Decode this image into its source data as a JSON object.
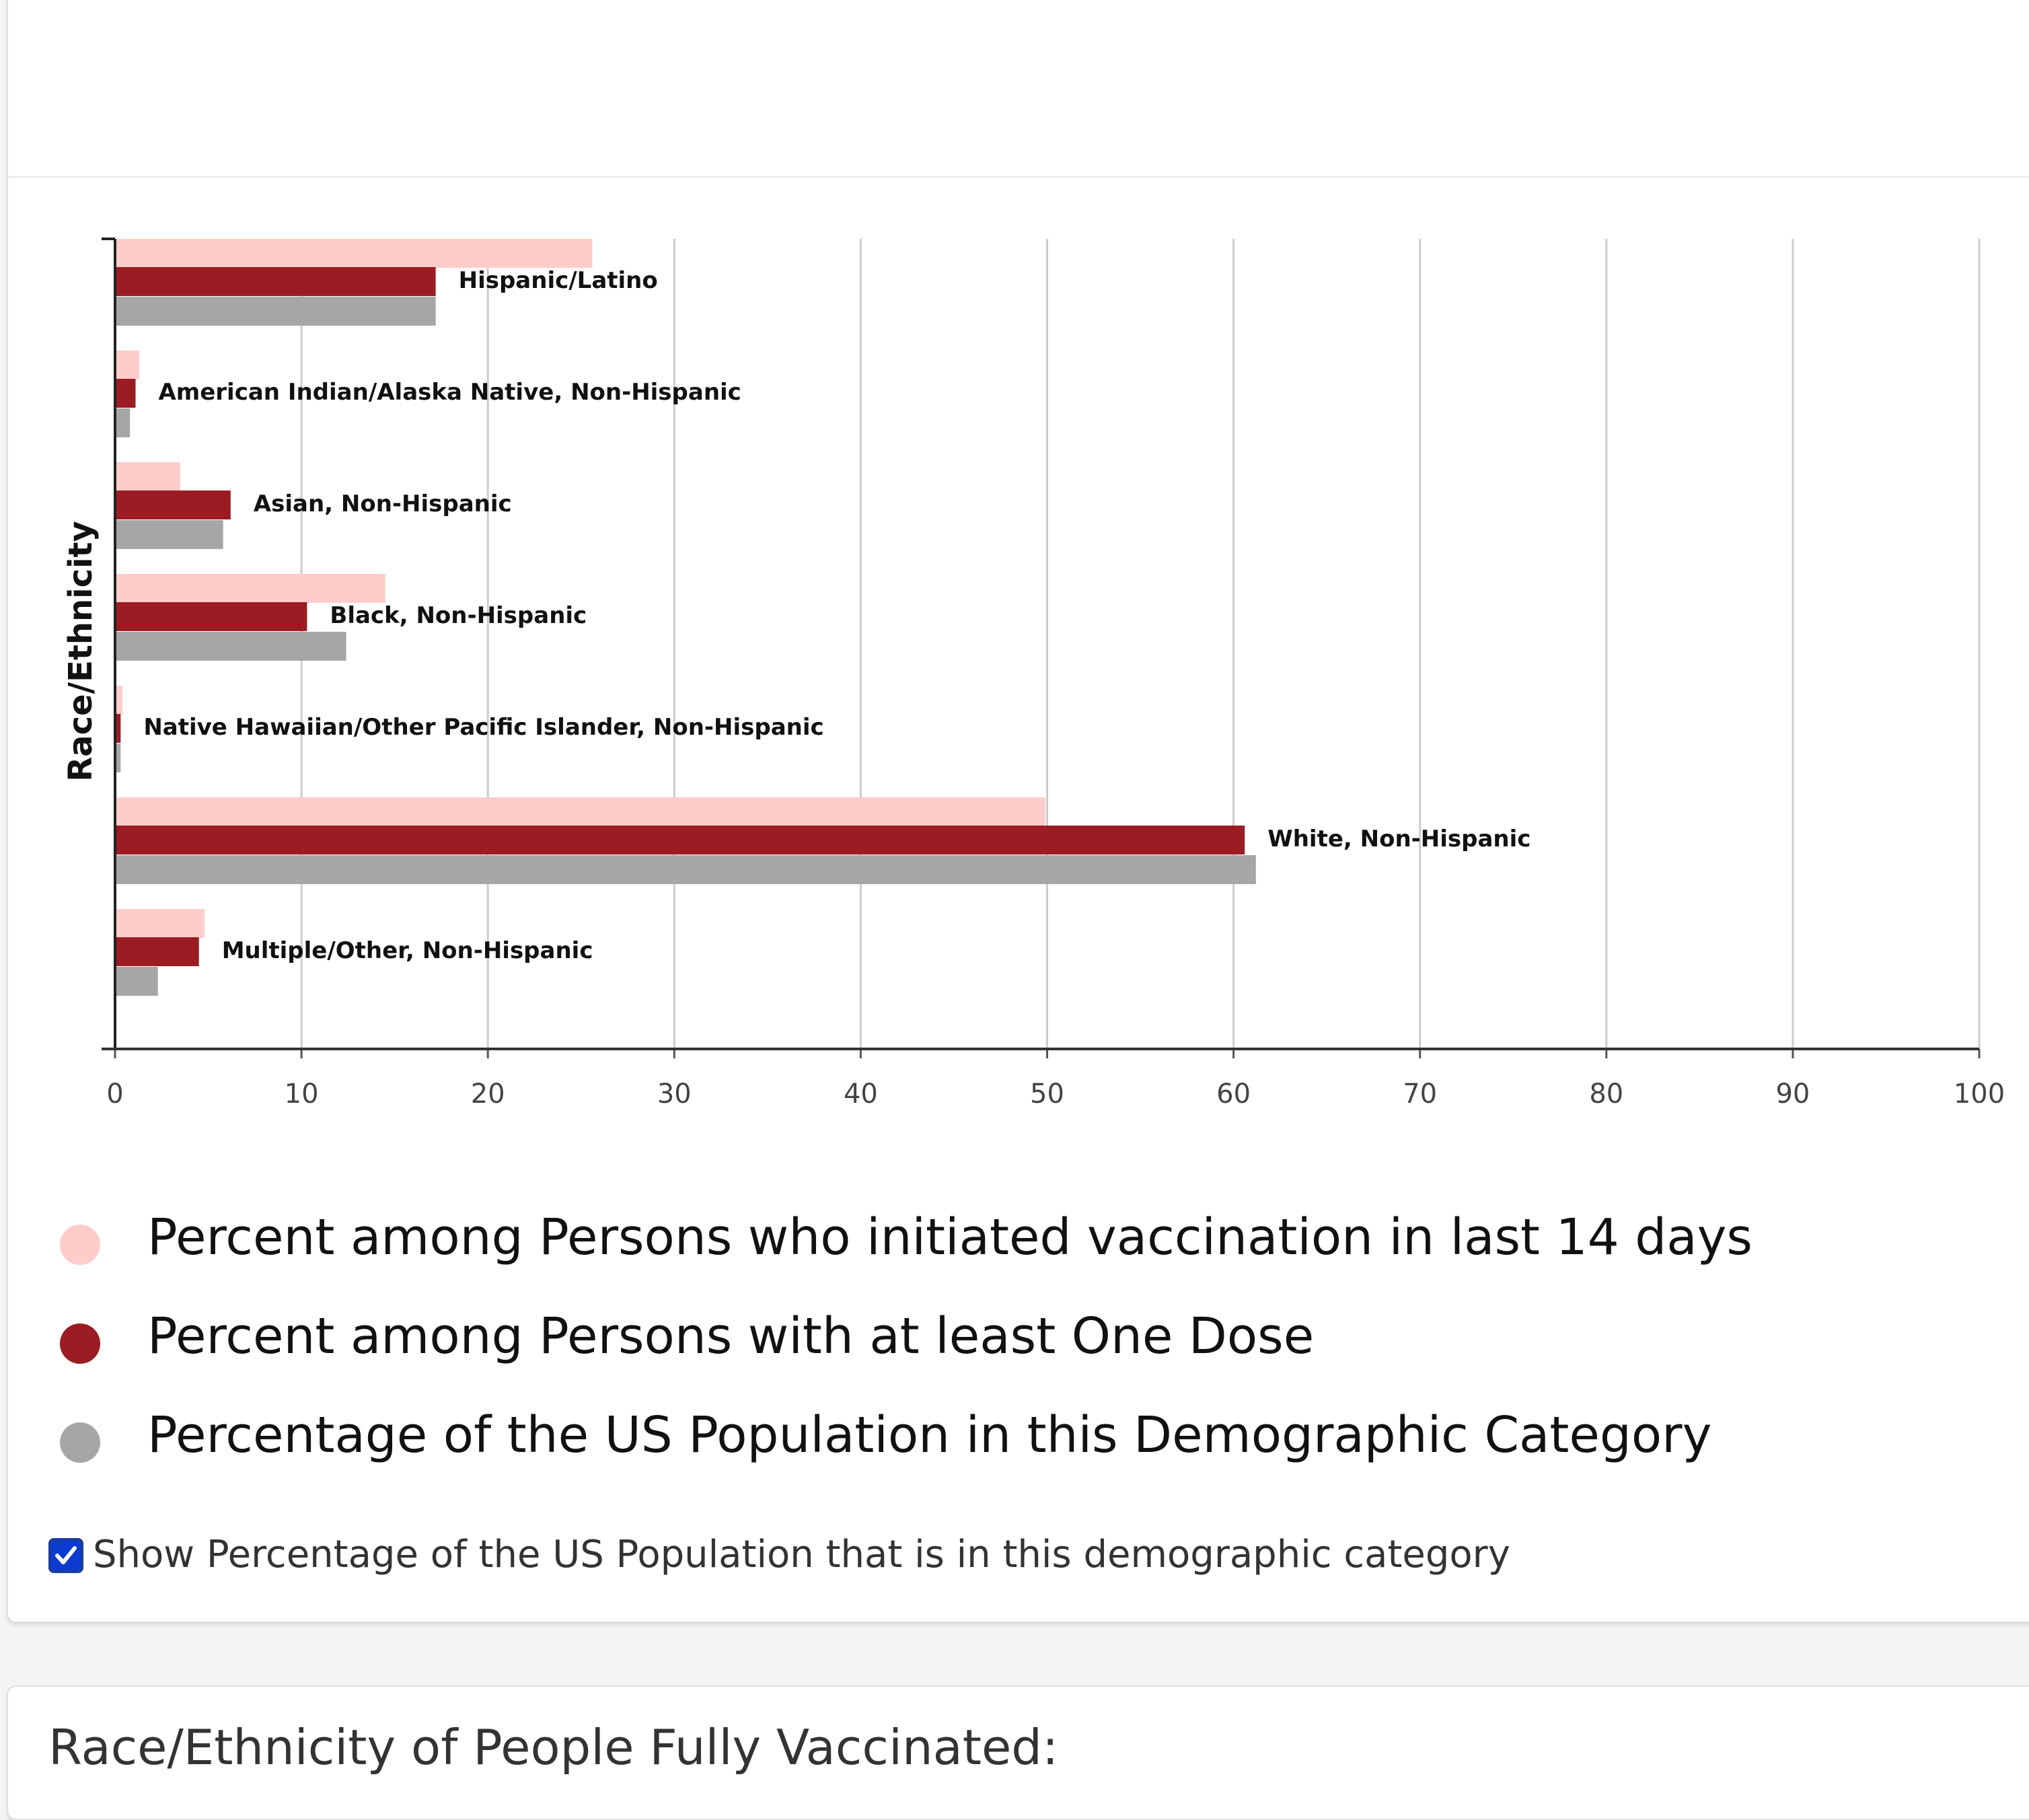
{
  "chart_data": {
    "type": "bar",
    "orientation": "horizontal",
    "ylabel": "Race/Ethnicity",
    "xlim": [
      0,
      100
    ],
    "xticks": [
      0,
      10,
      20,
      30,
      40,
      50,
      60,
      70,
      80,
      90,
      100
    ],
    "grid": true,
    "categories": [
      "Hispanic/Latino",
      "American Indian/Alaska Native, Non-Hispanic",
      "Asian, Non-Hispanic",
      "Black, Non-Hispanic",
      "Native Hawaiian/Other Pacific Islander, Non-Hispanic",
      "White, Non-Hispanic",
      "Multiple/Other, Non-Hispanic"
    ],
    "series": [
      {
        "name": "Percent among Persons who initiated vaccination in last 14 days",
        "color": "#ffcccc",
        "values": [
          25.6,
          1.3,
          3.5,
          14.5,
          0.4,
          49.9,
          4.8
        ]
      },
      {
        "name": "Percent among Persons with at least One Dose",
        "color": "#9b1c22",
        "values": [
          17.2,
          1.1,
          6.2,
          10.3,
          0.3,
          60.6,
          4.5
        ]
      },
      {
        "name": "Percentage of the US Population in this Demographic Category",
        "color": "#a6a6a6",
        "values": [
          17.2,
          0.8,
          5.8,
          12.4,
          0.3,
          61.2,
          2.3
        ]
      }
    ]
  },
  "legend": {
    "items": [
      {
        "label": "Percent among Persons who initiated vaccination in last 14 days",
        "color": "#ffcccc"
      },
      {
        "label": "Percent among Persons with at least One Dose",
        "color": "#9b1c22"
      },
      {
        "label": "Percentage of the US Population in this Demographic Category",
        "color": "#a6a6a6"
      }
    ]
  },
  "toggle": {
    "label": "Show Percentage of the US Population that is in this demographic category",
    "checked": true
  },
  "next_section": {
    "title": "Race/Ethnicity of People Fully Vaccinated:"
  }
}
